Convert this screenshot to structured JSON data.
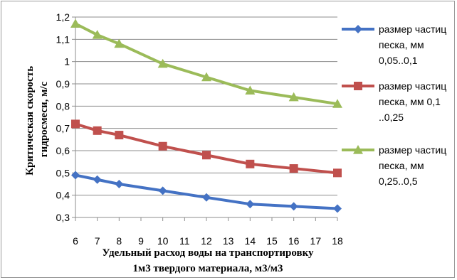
{
  "chart_data": {
    "type": "line",
    "x": [
      6,
      7,
      8,
      10,
      12,
      14,
      16,
      18
    ],
    "xticks": [
      "6",
      "7",
      "8",
      "9",
      "10",
      "11",
      "12",
      "13",
      "14",
      "15",
      "16",
      "17",
      "18"
    ],
    "xlim": [
      6,
      18
    ],
    "yticks": [
      "0,3",
      "0,4",
      "0,5",
      "0,6",
      "0,7",
      "0,8",
      "0,9",
      "1",
      "1,1",
      "1,2"
    ],
    "ylim": [
      0.3,
      1.2
    ],
    "grid": true,
    "legend_position": "right",
    "xlabel_line1": "Удельный расход воды на транспортировку",
    "xlabel_line2": "1м3 твердого материала,  м3/м3",
    "ylabel_line1": "Критическая  скорость",
    "ylabel_line2": "гидросмеси, м/с",
    "series": [
      {
        "name": "размер частиц песка, мм 0,05..0,1",
        "legend_lines": [
          "размер частиц",
          "песка, мм",
          "0,05..0,1"
        ],
        "color": "#4472c4",
        "marker": "diamond",
        "values": [
          0.49,
          0.47,
          0.45,
          0.42,
          0.39,
          0.36,
          0.35,
          0.34
        ]
      },
      {
        "name": "размер частиц песка, мм 0,1 ..0,25",
        "legend_lines": [
          "размер частиц",
          "песка, мм 0,1",
          "..0,25"
        ],
        "color": "#c0504d",
        "marker": "square",
        "values": [
          0.72,
          0.69,
          0.67,
          0.62,
          0.58,
          0.54,
          0.52,
          0.5
        ]
      },
      {
        "name": "размер частиц песка, мм 0,25..0,5",
        "legend_lines": [
          "размер частиц",
          "песка, мм",
          "0,25..0,5"
        ],
        "color": "#9bbb59",
        "marker": "triangle",
        "values": [
          1.17,
          1.12,
          1.08,
          0.99,
          0.93,
          0.87,
          0.84,
          0.81
        ]
      }
    ]
  }
}
